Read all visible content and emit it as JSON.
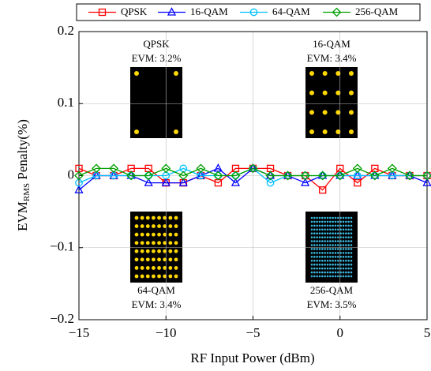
{
  "chart_data": {
    "type": "line",
    "xlabel": "RF Input Power (dBm)",
    "ylabel": {
      "main": "EVM",
      "sub": "RMS",
      "rest": " Penalty(%)"
    },
    "x": [
      -15,
      -14,
      -13,
      -12,
      -11,
      -10,
      -9,
      -8,
      -7,
      -6,
      -5,
      -4,
      -3,
      -2,
      -1,
      0,
      1,
      2,
      3,
      4,
      5
    ],
    "xlim": [
      -15,
      5
    ],
    "xticks": [
      {
        "value": -15,
        "label": "−15"
      },
      {
        "value": -10,
        "label": "−10"
      },
      {
        "value": -5,
        "label": "−5"
      },
      0,
      5
    ],
    "ylim": [
      -0.2,
      0.2
    ],
    "yticks": [
      {
        "value": -0.2,
        "label": "−0.2"
      },
      {
        "value": -0.1,
        "label": "−0.1"
      },
      0,
      0.1,
      0.2
    ],
    "grid": true,
    "legend": "top",
    "series": [
      {
        "name": "QPSK",
        "color": "#ff0000",
        "marker": "square",
        "values": [
          0.01,
          0,
          0,
          0.01,
          0.01,
          -0.01,
          -0.01,
          0,
          -0.01,
          0.01,
          0.01,
          0.01,
          0,
          0,
          -0.02,
          0.01,
          -0.01,
          0.01,
          0,
          0,
          0
        ]
      },
      {
        "name": "16-QAM",
        "color": "#0000ff",
        "marker": "triangle",
        "values": [
          -0.02,
          0,
          0,
          0,
          -0.01,
          -0.01,
          -0.01,
          0,
          0.01,
          -0.01,
          0.01,
          0,
          0,
          -0.01,
          0,
          0,
          0,
          0,
          0,
          0,
          -0.01
        ]
      },
      {
        "name": "64-QAM",
        "color": "#00bfff",
        "marker": "circle",
        "values": [
          -0.01,
          0,
          0,
          0,
          0,
          0,
          0.01,
          0,
          0,
          0,
          0.01,
          -0.01,
          0,
          0,
          0,
          0,
          0,
          0,
          0,
          0,
          0
        ]
      },
      {
        "name": "256-QAM",
        "color": "#00a000",
        "marker": "diamond",
        "values": [
          0,
          0.01,
          0.01,
          0,
          0,
          0.01,
          0,
          0.01,
          0,
          0,
          0.01,
          0,
          0,
          0,
          0,
          0,
          0.01,
          0,
          0.01,
          0,
          0
        ]
      }
    ],
    "annotations": [
      {
        "label": "QPSK",
        "evm": "EVM: 3.2%"
      },
      {
        "label": "16-QAM",
        "evm": "EVM: 3.4%"
      },
      {
        "label": "64-QAM",
        "evm": "EVM: 3.4%"
      },
      {
        "label": "256-QAM",
        "evm": "EVM: 3.5%"
      }
    ]
  }
}
